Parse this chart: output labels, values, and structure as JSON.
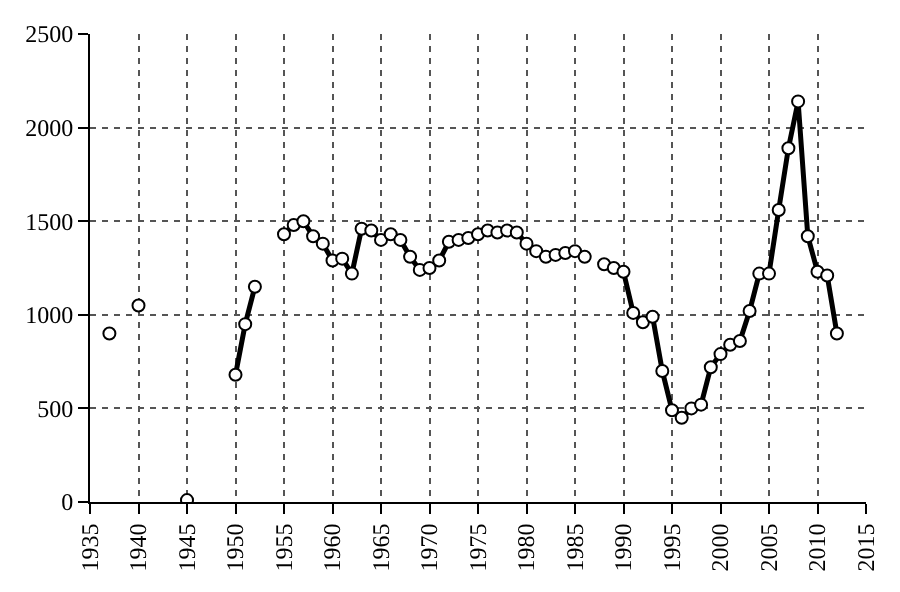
{
  "chart_data": {
    "type": "line",
    "x": [
      1937,
      1938,
      1940,
      1941,
      1945,
      1946,
      1950,
      1951,
      1952,
      1953,
      1955,
      1956,
      1957,
      1958,
      1959,
      1960,
      1961,
      1962,
      1963,
      1964,
      1965,
      1966,
      1967,
      1968,
      1969,
      1970,
      1971,
      1972,
      1973,
      1974,
      1975,
      1976,
      1977,
      1978,
      1979,
      1980,
      1981,
      1982,
      1983,
      1984,
      1985,
      1986,
      1987,
      1988,
      1989,
      1990,
      1991,
      1992,
      1993,
      1994,
      1995,
      1996,
      1997,
      1998,
      1999,
      2000,
      2001,
      2002,
      2003,
      2004,
      2005,
      2006,
      2007,
      2008,
      2009,
      2010,
      2011,
      2012
    ],
    "series": [
      {
        "color": "#000000",
        "values": [
          900,
          null,
          1050,
          null,
          10,
          null,
          680,
          950,
          1150,
          null,
          1430,
          1480,
          1500,
          1420,
          1380,
          1290,
          1300,
          1220,
          1460,
          1450,
          1400,
          1430,
          1400,
          1310,
          1240,
          1250,
          1290,
          1390,
          1400,
          1410,
          1430,
          1450,
          1440,
          1450,
          1440,
          1380,
          1340,
          1310,
          1320,
          1330,
          1340,
          1310,
          null,
          1270,
          1250,
          1230,
          1010,
          960,
          990,
          700,
          490,
          450,
          500,
          520,
          720,
          790,
          840,
          860,
          1020,
          1220,
          1220,
          1560,
          1890,
          2140,
          1420,
          1230,
          1210,
          900
        ]
      }
    ],
    "xlim": [
      1935,
      2015
    ],
    "xticks": [
      1935,
      1940,
      1945,
      1950,
      1955,
      1960,
      1965,
      1970,
      1975,
      1980,
      1985,
      1990,
      1995,
      2000,
      2005,
      2010,
      2015
    ],
    "ylim": [
      0,
      2500
    ],
    "yticks": [
      0,
      500,
      1000,
      1500,
      2000,
      2500
    ],
    "grid": true,
    "marker": "circle",
    "line_style": "solid"
  }
}
